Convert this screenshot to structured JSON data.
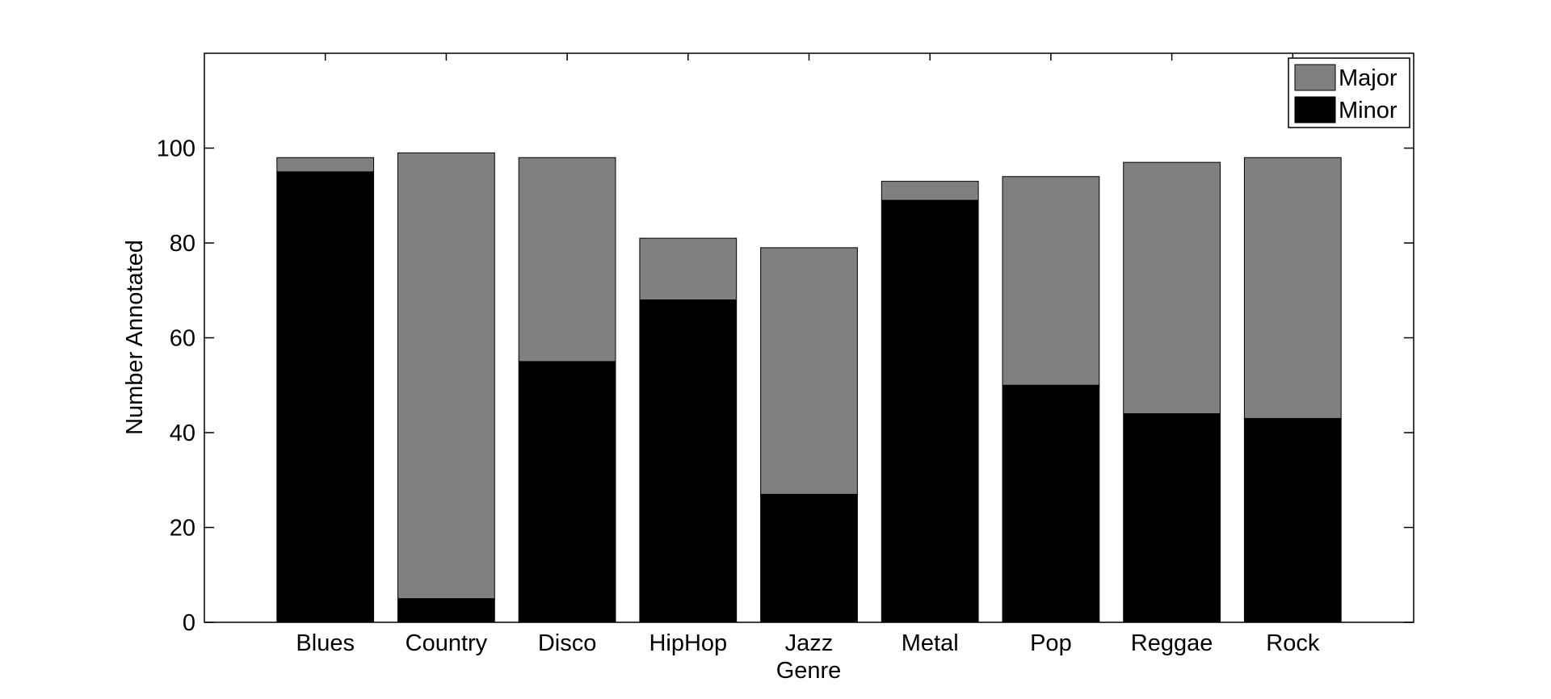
{
  "chart_data": {
    "type": "bar",
    "stacked": true,
    "categories": [
      "Blues",
      "Country",
      "Disco",
      "HipHop",
      "Jazz",
      "Metal",
      "Pop",
      "Reggae",
      "Rock"
    ],
    "series": [
      {
        "name": "Minor",
        "values": [
          95,
          5,
          55,
          68,
          27,
          89,
          50,
          44,
          43
        ],
        "color": "#000000"
      },
      {
        "name": "Major",
        "values": [
          3,
          94,
          43,
          13,
          52,
          4,
          44,
          53,
          55
        ],
        "color": "#808080"
      }
    ],
    "xlabel": "Genre",
    "ylabel": "Number Annotated",
    "ylim": [
      0,
      120
    ],
    "yticks": [
      0,
      20,
      40,
      60,
      80,
      100
    ],
    "yticks_labels": [
      "0",
      "20",
      "40",
      "60",
      "80",
      "100"
    ],
    "legend": {
      "placement": "top-right",
      "entries": [
        "Major",
        "Minor"
      ]
    },
    "grid": false
  }
}
